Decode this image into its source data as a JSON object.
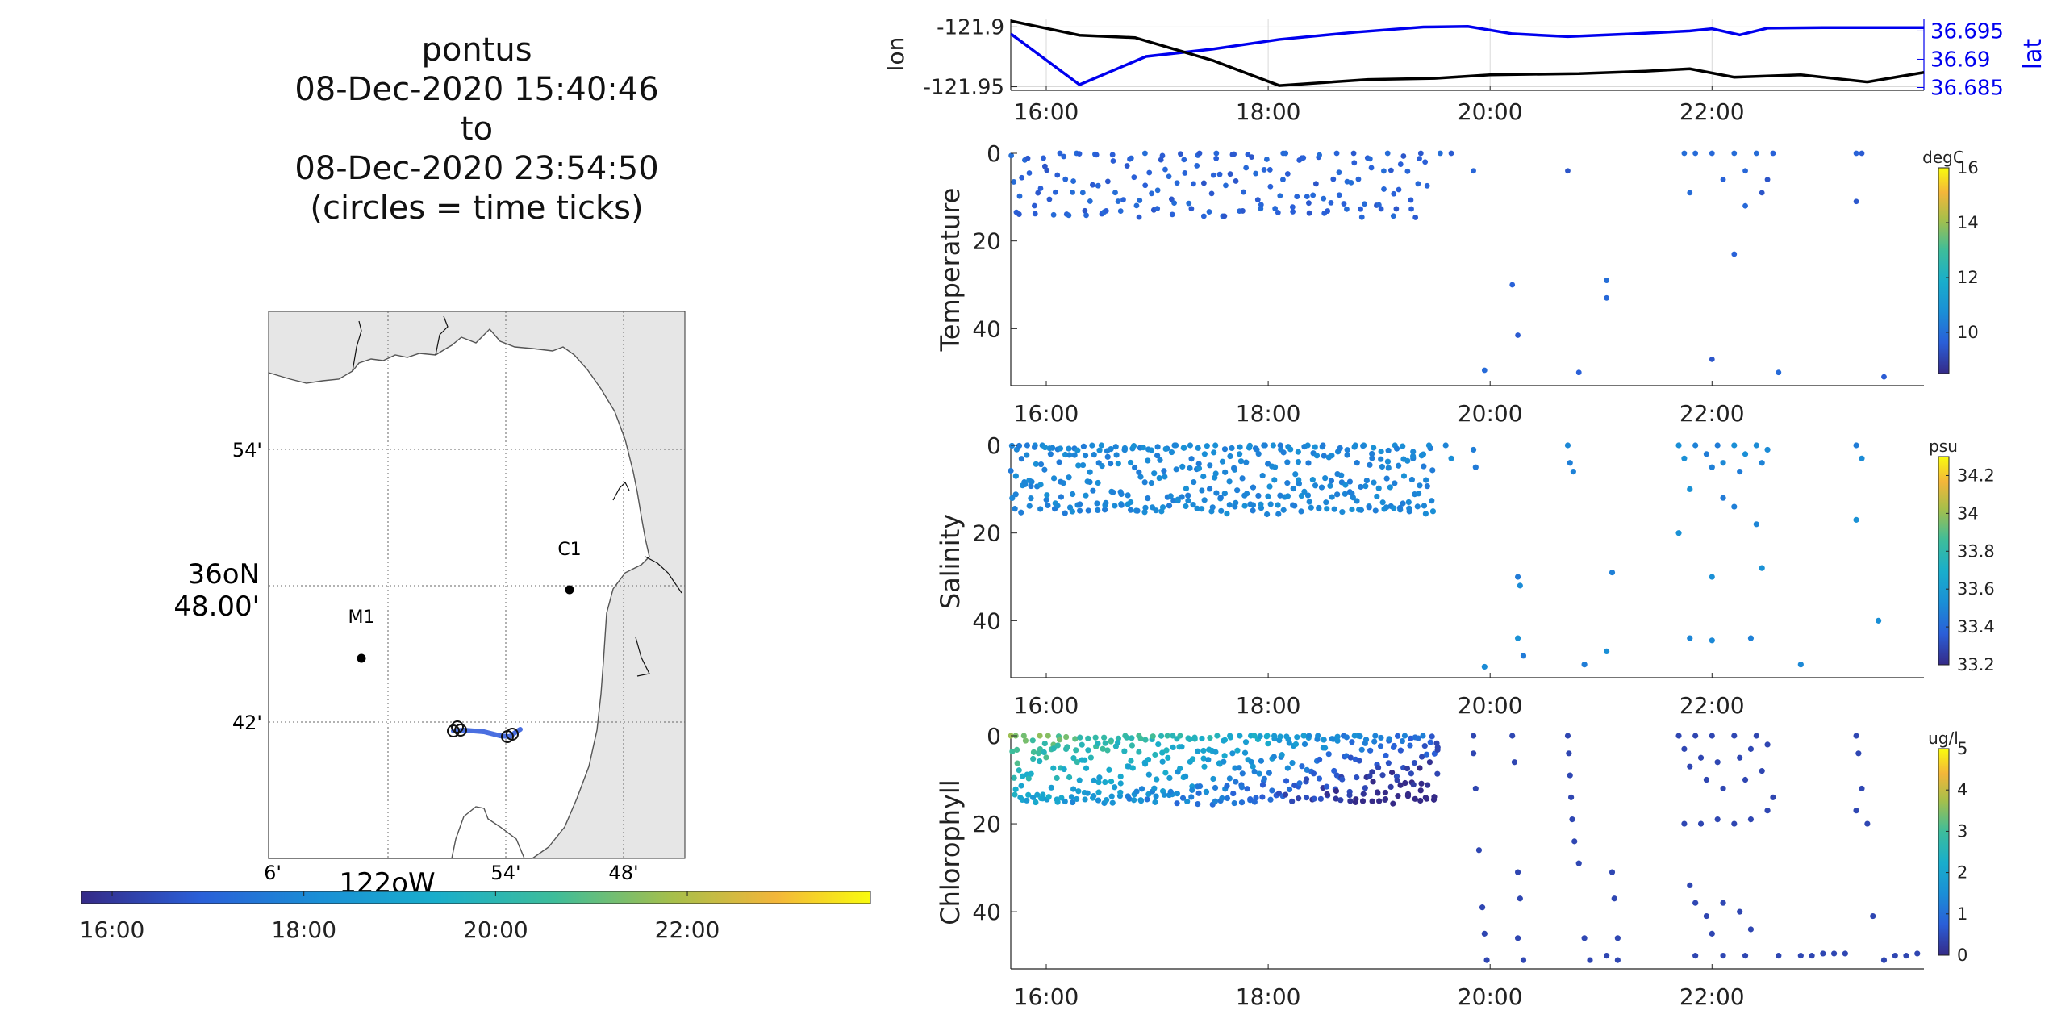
{
  "title": {
    "lines": [
      "pontus",
      "08-Dec-2020 15:40:46",
      "to",
      "08-Dec-2020 23:54:50",
      "(circles = time ticks)"
    ]
  },
  "map": {
    "lat_ticks": [
      "54'",
      "42'"
    ],
    "lat_center_label_top": "36oN",
    "lat_center_label_bottom": "48.00'",
    "lon_ticks": [
      "6'",
      "54'",
      "48'"
    ],
    "lon_center_label": "122oW",
    "stations": [
      {
        "label": "M1"
      },
      {
        "label": "C1"
      }
    ],
    "colors": {
      "land": "#e6e6e6",
      "water": "#ffffff",
      "track": "#4a6fe0",
      "marker": "#000000"
    }
  },
  "time_colorbar": {
    "ticks": [
      "16:00",
      "18:00",
      "20:00",
      "22:00"
    ]
  },
  "chart_data": [
    {
      "type": "line",
      "xlabel": "",
      "ylabel": "lon",
      "ylabel_right": "lat",
      "x_ticks": [
        "16:00",
        "18:00",
        "20:00",
        "22:00"
      ],
      "xlim": [
        15.68,
        23.91
      ],
      "yticks_left": [
        "-121.9",
        "-121.95"
      ],
      "yticks_right": [
        "36.695",
        "36.69",
        "36.685"
      ],
      "grid": true,
      "series": [
        {
          "name": "lon",
          "color": "#000000",
          "x": [
            15.68,
            16.3,
            16.8,
            17.5,
            18.1,
            18.9,
            19.5,
            20.0,
            20.8,
            21.4,
            21.8,
            22.2,
            22.8,
            23.4,
            23.91
          ],
          "y": [
            -121.895,
            -121.907,
            -121.909,
            -121.928,
            -121.949,
            -121.944,
            -121.943,
            -121.94,
            -121.939,
            -121.937,
            -121.935,
            -121.942,
            -121.94,
            -121.946,
            -121.938
          ]
        },
        {
          "name": "lat",
          "color": "#0000ee",
          "x": [
            15.68,
            16.3,
            16.9,
            17.5,
            18.1,
            18.8,
            19.4,
            19.8,
            20.2,
            20.7,
            21.3,
            21.8,
            22.0,
            22.25,
            22.5,
            23.0,
            23.91
          ],
          "y": [
            36.6945,
            36.6855,
            36.6905,
            36.6918,
            36.6935,
            36.6948,
            36.6957,
            36.6958,
            36.6945,
            36.694,
            36.6945,
            36.695,
            36.6954,
            36.6943,
            36.6955,
            36.6956,
            36.6956
          ]
        }
      ]
    },
    {
      "type": "scatter",
      "ylabel": "Temperature",
      "x_ticks": [
        "16:00",
        "18:00",
        "20:00",
        "22:00"
      ],
      "y_ticks": [
        "0",
        "20",
        "40"
      ],
      "ylim": [
        53,
        0
      ],
      "colorbar": {
        "unit": "degC",
        "ticks": [
          "16",
          "14",
          "12",
          "10"
        ],
        "range": [
          8.5,
          16
        ]
      },
      "color_value_typical": 9.7,
      "dense_segments": [
        {
          "x_start": 15.68,
          "x_end": 19.45,
          "depth_min": 0,
          "depth_max": 14,
          "count": 170
        }
      ],
      "points": [
        [
          19.55,
          0
        ],
        [
          19.65,
          0
        ],
        [
          19.85,
          4
        ],
        [
          20.2,
          30
        ],
        [
          20.25,
          41.5
        ],
        [
          20.7,
          4
        ],
        [
          21.05,
          29
        ],
        [
          21.05,
          33
        ],
        [
          19.95,
          49.5
        ],
        [
          20.8,
          50
        ],
        [
          21.75,
          0
        ],
        [
          21.85,
          0
        ],
        [
          21.8,
          9
        ],
        [
          22.0,
          0
        ],
        [
          22.1,
          6
        ],
        [
          22.2,
          0
        ],
        [
          22.3,
          4
        ],
        [
          22.3,
          12
        ],
        [
          22.4,
          0
        ],
        [
          22.45,
          9
        ],
        [
          22.5,
          6
        ],
        [
          22.55,
          0
        ],
        [
          22.2,
          23
        ],
        [
          22.0,
          47
        ],
        [
          23.3,
          0
        ],
        [
          23.35,
          0
        ],
        [
          23.3,
          11
        ],
        [
          22.6,
          50
        ],
        [
          23.55,
          51
        ]
      ]
    },
    {
      "type": "scatter",
      "ylabel": "Salinity",
      "x_ticks": [
        "16:00",
        "18:00",
        "20:00",
        "22:00"
      ],
      "y_ticks": [
        "0",
        "20",
        "40"
      ],
      "ylim": [
        53,
        0
      ],
      "colorbar": {
        "unit": "psu",
        "ticks": [
          "34.2",
          "34",
          "33.8",
          "33.6",
          "33.4",
          "33.2"
        ],
        "range": [
          33.2,
          34.3
        ]
      },
      "color_value_typical": 33.5,
      "dense_segments": [
        {
          "x_start": 15.68,
          "x_end": 19.5,
          "depth_min": 0,
          "depth_max": 15,
          "count": 360
        }
      ],
      "points": [
        [
          19.6,
          0
        ],
        [
          19.65,
          3
        ],
        [
          19.85,
          1
        ],
        [
          19.87,
          5
        ],
        [
          20.25,
          30
        ],
        [
          20.27,
          32
        ],
        [
          20.25,
          44
        ],
        [
          20.3,
          48
        ],
        [
          19.95,
          50.5
        ],
        [
          20.7,
          0
        ],
        [
          20.72,
          4
        ],
        [
          20.75,
          6
        ],
        [
          21.1,
          29
        ],
        [
          21.05,
          47
        ],
        [
          20.85,
          50
        ],
        [
          21.7,
          0
        ],
        [
          21.75,
          3
        ],
        [
          21.85,
          0
        ],
        [
          21.95,
          2
        ],
        [
          22.0,
          5
        ],
        [
          22.05,
          0
        ],
        [
          22.1,
          4
        ],
        [
          22.2,
          0
        ],
        [
          22.25,
          6
        ],
        [
          22.3,
          2
        ],
        [
          22.4,
          0
        ],
        [
          22.45,
          4
        ],
        [
          22.5,
          1
        ],
        [
          21.8,
          10
        ],
        [
          22.1,
          12
        ],
        [
          22.2,
          14
        ],
        [
          22.4,
          18
        ],
        [
          21.7,
          20
        ],
        [
          22.0,
          30
        ],
        [
          22.45,
          28
        ],
        [
          21.8,
          44
        ],
        [
          22.0,
          44.5
        ],
        [
          22.35,
          44
        ],
        [
          22.8,
          50
        ],
        [
          23.3,
          0
        ],
        [
          23.35,
          3
        ],
        [
          23.3,
          17
        ],
        [
          23.5,
          40
        ]
      ]
    },
    {
      "type": "scatter",
      "ylabel": "Chlorophyll",
      "x_ticks": [
        "16:00",
        "18:00",
        "20:00",
        "22:00"
      ],
      "y_ticks": [
        "0",
        "20",
        "40"
      ],
      "ylim": [
        53,
        0
      ],
      "colorbar": {
        "unit": "ug/l",
        "ticks": [
          "5",
          "4",
          "3",
          "2",
          "1",
          "0"
        ],
        "range": [
          0,
          5
        ]
      },
      "color_trend": {
        "x": [
          15.7,
          16.5,
          17.2,
          18.0,
          18.6,
          19.0,
          19.5
        ],
        "c": [
          3.4,
          2.9,
          2.6,
          2.0,
          1.4,
          1.1,
          0.9
        ]
      },
      "dense_segments": [
        {
          "x_start": 15.68,
          "x_end": 19.55,
          "depth_min": 0,
          "depth_max": 15,
          "count": 420
        }
      ],
      "points": [
        [
          19.85,
          0
        ],
        [
          19.85,
          4
        ],
        [
          19.87,
          12
        ],
        [
          19.9,
          26
        ],
        [
          19.93,
          39
        ],
        [
          19.95,
          45
        ],
        [
          19.97,
          51
        ],
        [
          20.2,
          0
        ],
        [
          20.22,
          6
        ],
        [
          20.25,
          31
        ],
        [
          20.27,
          37
        ],
        [
          20.25,
          46
        ],
        [
          20.3,
          51
        ],
        [
          20.7,
          0
        ],
        [
          20.71,
          4
        ],
        [
          20.72,
          9
        ],
        [
          20.73,
          14
        ],
        [
          20.74,
          19
        ],
        [
          20.76,
          24
        ],
        [
          20.8,
          29
        ],
        [
          20.85,
          46
        ],
        [
          20.9,
          51
        ],
        [
          21.05,
          50
        ],
        [
          21.1,
          31
        ],
        [
          21.12,
          37
        ],
        [
          21.15,
          46
        ],
        [
          21.15,
          51
        ],
        [
          21.7,
          0
        ],
        [
          21.75,
          3
        ],
        [
          21.8,
          7
        ],
        [
          21.85,
          0
        ],
        [
          21.9,
          5
        ],
        [
          21.95,
          10
        ],
        [
          22.0,
          0
        ],
        [
          22.05,
          6
        ],
        [
          22.1,
          12
        ],
        [
          22.2,
          0
        ],
        [
          22.25,
          5
        ],
        [
          22.3,
          10
        ],
        [
          22.35,
          3
        ],
        [
          22.4,
          0
        ],
        [
          22.45,
          8
        ],
        [
          22.5,
          2
        ],
        [
          22.55,
          14
        ],
        [
          21.75,
          20
        ],
        [
          21.9,
          20
        ],
        [
          22.05,
          19
        ],
        [
          22.2,
          20
        ],
        [
          22.35,
          19
        ],
        [
          22.5,
          17
        ],
        [
          21.8,
          34
        ],
        [
          21.85,
          38
        ],
        [
          21.95,
          41
        ],
        [
          22.0,
          45
        ],
        [
          22.1,
          38
        ],
        [
          22.25,
          40
        ],
        [
          22.35,
          44
        ],
        [
          21.85,
          50
        ],
        [
          22.1,
          50
        ],
        [
          22.3,
          50
        ],
        [
          22.6,
          50
        ],
        [
          22.8,
          50
        ],
        [
          22.9,
          50
        ],
        [
          23.0,
          49.5
        ],
        [
          23.1,
          49.5
        ],
        [
          23.2,
          49.5
        ],
        [
          23.3,
          0
        ],
        [
          23.32,
          4
        ],
        [
          23.35,
          12
        ],
        [
          23.3,
          17
        ],
        [
          23.4,
          20
        ],
        [
          23.45,
          41
        ],
        [
          23.55,
          51
        ],
        [
          23.65,
          50
        ],
        [
          23.75,
          50
        ],
        [
          23.85,
          49.5
        ]
      ]
    }
  ]
}
